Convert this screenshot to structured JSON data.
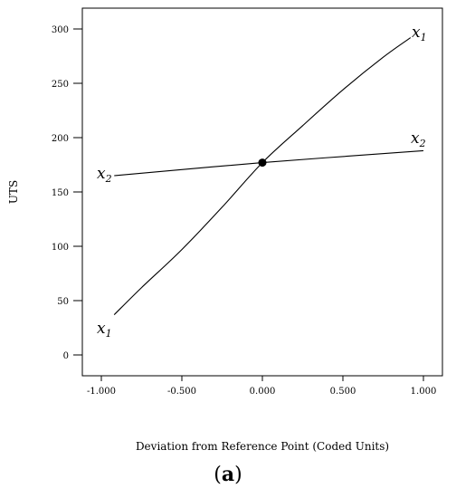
{
  "chart_data": {
    "type": "line",
    "title": "",
    "xlabel": "Deviation from Reference Point (Coded Units)",
    "ylabel": "UTS",
    "xlim": [
      -1.1,
      1.1
    ],
    "ylim": [
      -20,
      320
    ],
    "x_ticks": [
      -1.0,
      -0.5,
      0.0,
      0.5,
      1.0
    ],
    "x_tick_labels": [
      "-1.000",
      "-0.500",
      "0.000",
      "0.500",
      "1.000"
    ],
    "y_ticks": [
      0,
      50,
      100,
      150,
      200,
      250,
      300
    ],
    "y_tick_labels": [
      "0",
      "50",
      "100",
      "150",
      "200",
      "250",
      "300"
    ],
    "grid": false,
    "legend": "none",
    "series": [
      {
        "label_base": "x",
        "label_sub": "1",
        "x": [
          -0.92,
          -0.75,
          -0.5,
          -0.25,
          0.0,
          0.25,
          0.5,
          0.75,
          0.92
        ],
        "y": [
          37,
          62,
          97,
          136,
          177,
          211,
          244,
          274,
          292
        ]
      },
      {
        "label_base": "x",
        "label_sub": "2",
        "x": [
          -0.92,
          0.0,
          1.0
        ],
        "y": [
          165,
          177,
          188
        ]
      }
    ],
    "reference_point": {
      "x": 0.0,
      "y": 177
    },
    "panel_label_open": "(",
    "panel_label_letter": "a",
    "panel_label_close": ")"
  }
}
